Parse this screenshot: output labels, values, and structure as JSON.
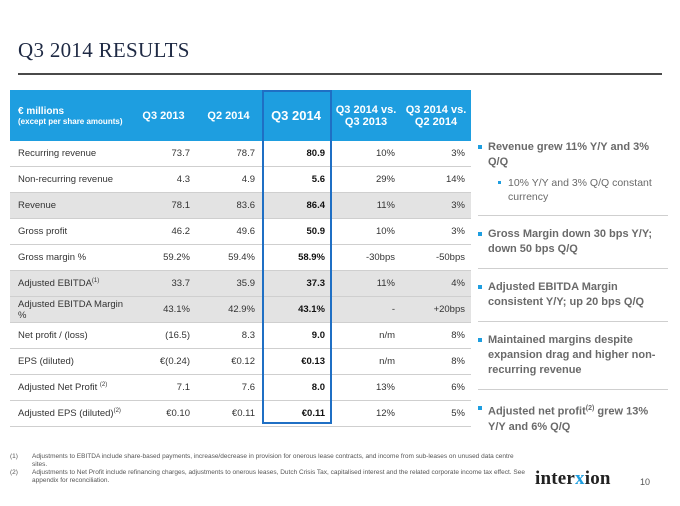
{
  "title": {
    "year": "Q3 2014",
    "word": "RESULTS"
  },
  "table": {
    "headers": {
      "label_main": "€ millions",
      "label_sub": "(except per share amounts)",
      "cols": [
        "Q3 2013",
        "Q2 2014",
        "Q3 2014",
        "Q3 2014 vs.\nQ3 2013",
        "Q3 2014 vs.\nQ2 2014"
      ]
    },
    "rows": [
      {
        "label": "Recurring revenue",
        "sup": "",
        "values": [
          "73.7",
          "78.7",
          "80.9",
          "10%",
          "3%"
        ]
      },
      {
        "label": "Non-recurring revenue",
        "sup": "",
        "values": [
          "4.3",
          "4.9",
          "5.6",
          "29%",
          "14%"
        ]
      },
      {
        "label": "Revenue",
        "sup": "",
        "values": [
          "78.1",
          "83.6",
          "86.4",
          "11%",
          "3%"
        ]
      },
      {
        "label": "Gross profit",
        "sup": "",
        "values": [
          "46.2",
          "49.6",
          "50.9",
          "10%",
          "3%"
        ]
      },
      {
        "label": "Gross margin %",
        "sup": "",
        "values": [
          "59.2%",
          "59.4%",
          "58.9%",
          "-30bps",
          "-50bps"
        ]
      },
      {
        "label": "Adjusted EBITDA",
        "sup": "(1)",
        "values": [
          "33.7",
          "35.9",
          "37.3",
          "11%",
          "4%"
        ]
      },
      {
        "label": "Adjusted EBITDA Margin %",
        "sup": "",
        "values": [
          "43.1%",
          "42.9%",
          "43.1%",
          "-",
          "+20bps"
        ]
      },
      {
        "label": "Net profit / (loss)",
        "sup": "",
        "values": [
          "(16.5)",
          "8.3",
          "9.0",
          "n/m",
          "8%"
        ]
      },
      {
        "label": "EPS (diluted)",
        "sup": "",
        "values": [
          "€(0.24)",
          "€0.12",
          "€0.13",
          "n/m",
          "8%"
        ]
      },
      {
        "label": "Adjusted Net Profit ",
        "sup": "(2)",
        "values": [
          "7.1",
          "7.6",
          "8.0",
          "13%",
          "6%"
        ]
      },
      {
        "label": "Adjusted EPS (diluted)",
        "sup": "(2)",
        "values": [
          "€0.10",
          "€0.11",
          "€0.11",
          "12%",
          "5%"
        ]
      }
    ],
    "shaded_rows": [
      2,
      5,
      6
    ]
  },
  "bullets": [
    {
      "pre": "Revenue grew  11% Y/Y and 3% Q/Q",
      "sup": "",
      "post": ""
    },
    {
      "sub": "10% Y/Y and 3% Q/Q constant currency"
    },
    {
      "pre": "Gross Margin down 30 bps Y/Y; down 50 bps Q/Q",
      "sup": "",
      "post": ""
    },
    {
      "pre": "Adjusted EBITDA Margin consistent Y/Y; up 20 bps Q/Q",
      "sup": "",
      "post": ""
    },
    {
      "pre": "Maintained margins despite expansion drag and higher non-recurring revenue",
      "sup": "",
      "post": ""
    },
    {
      "pre": "Adjusted net profit",
      "sup": "(2)",
      "post": " grew 13% Y/Y and 6% Q/Q"
    }
  ],
  "footnotes": [
    {
      "num": "(1)",
      "text": "Adjustments to EBITDA include share-based payments, increase/decrease in provision for onerous lease contracts, and income from sub-leases on unused data centre sites."
    },
    {
      "num": "(2)",
      "text": "Adjustments to Net Profit include refinancing charges, adjustments to onerous leases, Dutch Crisis Tax, capitalised interest and the related corporate income tax effect. See appendix for reconciliation."
    }
  ],
  "logo": {
    "text": "interxion"
  },
  "page_number": "10",
  "colors": {
    "header_bg": "#1e9ee0",
    "highlight_border": "#1f6fc4",
    "shade": "#e3e3e3",
    "title": "#1f2a44"
  }
}
